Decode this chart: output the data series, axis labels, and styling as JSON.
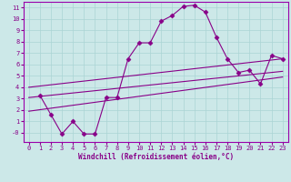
{
  "xlabel": "Windchill (Refroidissement éolien,°C)",
  "bg_color": "#cce8e8",
  "line_color": "#880088",
  "xlim": [
    -0.5,
    23.5
  ],
  "ylim": [
    -0.8,
    11.5
  ],
  "xticks": [
    0,
    1,
    2,
    3,
    4,
    5,
    6,
    7,
    8,
    9,
    10,
    11,
    12,
    13,
    14,
    15,
    16,
    17,
    18,
    19,
    20,
    21,
    22,
    23
  ],
  "yticks": [
    0,
    1,
    2,
    3,
    4,
    5,
    6,
    7,
    8,
    9,
    10,
    11
  ],
  "ytick_labels": [
    "-0",
    "1",
    "2",
    "3",
    "4",
    "5",
    "6",
    "7",
    "8",
    "9",
    "10",
    "11"
  ],
  "series1_x": [
    1,
    2,
    3,
    4,
    5,
    6,
    7,
    8,
    9,
    10,
    11,
    12,
    13,
    14,
    15,
    16,
    17,
    18,
    19,
    20,
    21,
    22,
    23
  ],
  "series1_y": [
    3.3,
    1.6,
    -0.1,
    1.0,
    -0.1,
    -0.1,
    3.1,
    3.1,
    6.5,
    7.9,
    7.9,
    9.8,
    10.3,
    11.1,
    11.2,
    10.6,
    8.4,
    6.5,
    5.3,
    5.5,
    4.3,
    6.8,
    6.5
  ],
  "series2_x": [
    0,
    23
  ],
  "series2_y": [
    4.0,
    6.5
  ],
  "series3_x": [
    0,
    23
  ],
  "series3_y": [
    3.1,
    5.4
  ],
  "series4_x": [
    0,
    23
  ],
  "series4_y": [
    1.9,
    4.9
  ],
  "grid_color": "#aad4d4",
  "spine_color": "#9900aa",
  "tick_color": "#880088"
}
